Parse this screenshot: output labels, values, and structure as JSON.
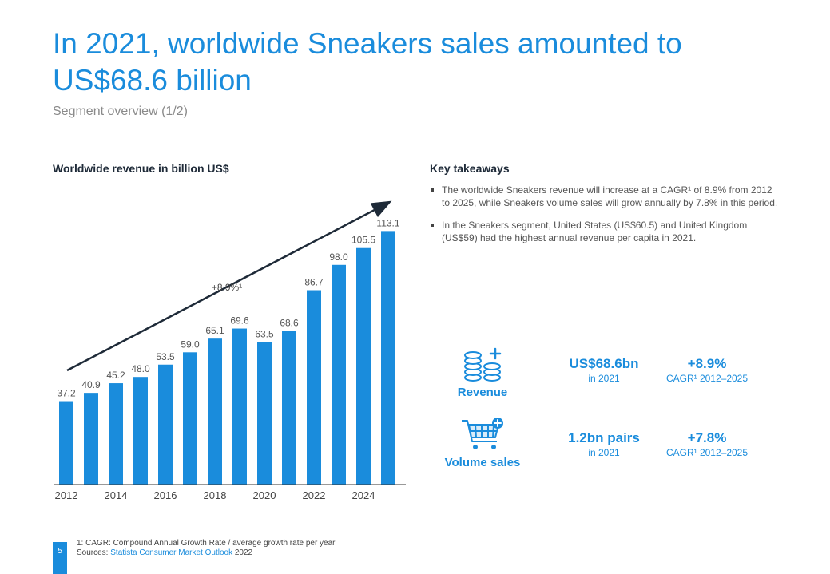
{
  "header": {
    "title": "In 2021, worldwide Sneakers sales amounted to US$68.6 billion",
    "subtitle": "Segment overview (1/2)"
  },
  "chart_data": {
    "type": "bar",
    "title": "Worldwide revenue in billion US$",
    "categories": [
      "2012",
      "2013",
      "2014",
      "2015",
      "2016",
      "2017",
      "2018",
      "2019",
      "2020",
      "2021",
      "2022",
      "2023",
      "2024",
      "2025"
    ],
    "values": [
      37.2,
      40.9,
      45.2,
      48.0,
      53.5,
      59.0,
      65.1,
      69.6,
      63.5,
      68.6,
      86.7,
      98.0,
      105.5,
      113.1
    ],
    "value_labels": [
      "37.2",
      "40.9",
      "45.2",
      "48.0",
      "53.5",
      "59.0",
      "65.1",
      "69.6",
      "63.5",
      "68.6",
      "86.7",
      "98.0",
      "105.5",
      "113.1"
    ],
    "tick_labels": [
      "2012",
      "",
      "2014",
      "",
      "2016",
      "",
      "2018",
      "",
      "2020",
      "",
      "2022",
      "",
      "2024",
      ""
    ],
    "ylim": [
      0,
      120
    ],
    "annotation": "+8.9%¹",
    "bar_color": "#1a8cdc"
  },
  "takeaways": {
    "title": "Key takeaways",
    "items": [
      "The worldwide Sneakers revenue will increase at a CAGR¹ of 8.9% from 2012 to 2025, while Sneakers volume sales will grow annually by 7.8% in this period.",
      "In the Sneakers segment, United States (US$60.5) and United Kingdom (US$59) had the highest annual revenue per capita in 2021."
    ]
  },
  "kpis": {
    "revenue": {
      "label": "Revenue",
      "value": "US$68.6bn",
      "value_sub": "in 2021",
      "growth": "+8.9%",
      "growth_sub": "CAGR¹ 2012–2025"
    },
    "volume": {
      "label": "Volume sales",
      "value": "1.2bn pairs",
      "value_sub": "in 2021",
      "growth": "+7.8%",
      "growth_sub": "CAGR¹ 2012–2025"
    }
  },
  "footer": {
    "page_number": "5",
    "note": "1: CAGR: Compound Annual Growth Rate / average growth rate per year",
    "sources_prefix": "Sources: ",
    "sources_link": "Statista Consumer Market Outlook",
    "sources_suffix": " 2022"
  }
}
